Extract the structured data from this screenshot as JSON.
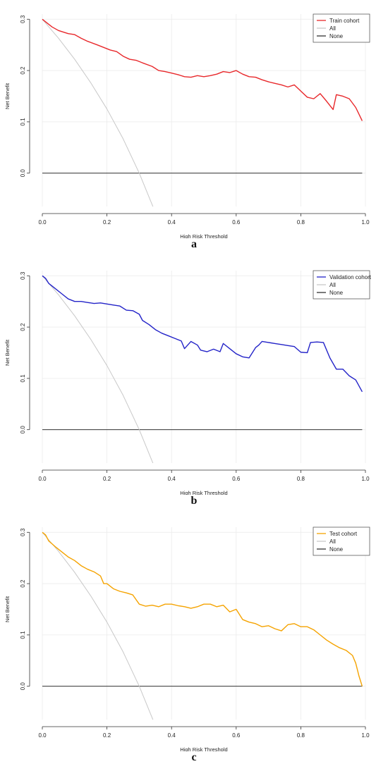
{
  "chart_data": [
    {
      "type": "line",
      "panel_label": "a",
      "xlabel": "High Risk Threshold",
      "ylabel": "Net Benefit",
      "xlim": [
        0,
        1
      ],
      "ylim": [
        -0.065,
        0.31
      ],
      "xticks": [
        "0.0",
        "0.2",
        "0.4",
        "0.6",
        "0.8",
        "1.0"
      ],
      "yticks": [
        "0.0",
        "0.1",
        "0.2",
        "0.3"
      ],
      "grid": true,
      "legend_position": "top-right",
      "series": [
        {
          "name": "Train cohort",
          "color": "#e8282b",
          "x": [
            0,
            0.01,
            0.03,
            0.05,
            0.08,
            0.1,
            0.12,
            0.14,
            0.17,
            0.19,
            0.21,
            0.23,
            0.25,
            0.27,
            0.29,
            0.31,
            0.34,
            0.36,
            0.38,
            0.4,
            0.42,
            0.44,
            0.46,
            0.48,
            0.5,
            0.52,
            0.54,
            0.56,
            0.58,
            0.6,
            0.62,
            0.64,
            0.66,
            0.68,
            0.7,
            0.72,
            0.74,
            0.76,
            0.78,
            0.8,
            0.82,
            0.84,
            0.86,
            0.88,
            0.9,
            0.91,
            0.93,
            0.95,
            0.97,
            0.99
          ],
          "y": [
            0.3,
            0.295,
            0.285,
            0.278,
            0.272,
            0.27,
            0.263,
            0.257,
            0.25,
            0.245,
            0.24,
            0.237,
            0.228,
            0.222,
            0.22,
            0.215,
            0.208,
            0.2,
            0.198,
            0.195,
            0.192,
            0.188,
            0.187,
            0.19,
            0.188,
            0.19,
            0.193,
            0.198,
            0.196,
            0.2,
            0.193,
            0.188,
            0.187,
            0.182,
            0.178,
            0.175,
            0.172,
            0.168,
            0.172,
            0.16,
            0.148,
            0.145,
            0.155,
            0.14,
            0.124,
            0.153,
            0.15,
            0.145,
            0.128,
            0.102
          ]
        },
        {
          "name": "All",
          "color": "#c8c8c8",
          "x": [
            0,
            0.05,
            0.1,
            0.15,
            0.2,
            0.25,
            0.3,
            0.35
          ],
          "y": [
            0.3,
            0.263,
            0.222,
            0.176,
            0.125,
            0.067,
            0.0,
            -0.077
          ]
        },
        {
          "name": "None",
          "color": "#333333",
          "x": [
            0,
            0.99
          ],
          "y": [
            0,
            0
          ]
        }
      ]
    },
    {
      "type": "line",
      "panel_label": "b",
      "xlabel": "High Risk Threshold",
      "ylabel": "Net Benefit",
      "xlim": [
        0,
        1
      ],
      "ylim": [
        -0.065,
        0.31
      ],
      "xticks": [
        "0.0",
        "0.2",
        "0.4",
        "0.6",
        "0.8",
        "1.0"
      ],
      "yticks": [
        "0.0",
        "0.1",
        "0.2",
        "0.3"
      ],
      "grid": true,
      "legend_position": "top-right",
      "series": [
        {
          "name": "Validation cohort",
          "color": "#2323c8",
          "x": [
            0,
            0.01,
            0.02,
            0.04,
            0.06,
            0.08,
            0.1,
            0.12,
            0.14,
            0.16,
            0.18,
            0.2,
            0.22,
            0.24,
            0.26,
            0.28,
            0.3,
            0.31,
            0.33,
            0.35,
            0.37,
            0.39,
            0.41,
            0.43,
            0.44,
            0.46,
            0.48,
            0.49,
            0.51,
            0.53,
            0.55,
            0.56,
            0.58,
            0.6,
            0.62,
            0.64,
            0.66,
            0.67,
            0.68,
            0.7,
            0.72,
            0.74,
            0.76,
            0.78,
            0.8,
            0.82,
            0.83,
            0.85,
            0.87,
            0.89,
            0.91,
            0.93,
            0.95,
            0.97,
            0.99
          ],
          "y": [
            0.3,
            0.295,
            0.285,
            0.275,
            0.265,
            0.255,
            0.25,
            0.25,
            0.248,
            0.246,
            0.247,
            0.245,
            0.243,
            0.241,
            0.233,
            0.232,
            0.225,
            0.213,
            0.205,
            0.195,
            0.188,
            0.183,
            0.178,
            0.173,
            0.158,
            0.172,
            0.165,
            0.155,
            0.152,
            0.157,
            0.152,
            0.168,
            0.158,
            0.148,
            0.142,
            0.14,
            0.16,
            0.165,
            0.172,
            0.17,
            0.168,
            0.166,
            0.164,
            0.162,
            0.151,
            0.15,
            0.17,
            0.171,
            0.17,
            0.14,
            0.118,
            0.118,
            0.105,
            0.097,
            0.074
          ]
        },
        {
          "name": "All",
          "color": "#c8c8c8",
          "x": [
            0,
            0.05,
            0.1,
            0.15,
            0.2,
            0.25,
            0.3,
            0.35
          ],
          "y": [
            0.3,
            0.263,
            0.222,
            0.176,
            0.125,
            0.067,
            0.0,
            -0.077
          ]
        },
        {
          "name": "None",
          "color": "#333333",
          "x": [
            0,
            0.99
          ],
          "y": [
            0,
            0
          ]
        }
      ]
    },
    {
      "type": "line",
      "panel_label": "c",
      "xlabel": "High Risk Threshold",
      "ylabel": "Net Benefit",
      "xlim": [
        0,
        1
      ],
      "ylim": [
        -0.065,
        0.31
      ],
      "xticks": [
        "0.0",
        "0.2",
        "0.4",
        "0.6",
        "0.8",
        "1.0"
      ],
      "yticks": [
        "0.0",
        "0.1",
        "0.2",
        "0.3"
      ],
      "grid": true,
      "legend_position": "top-right",
      "series": [
        {
          "name": "Test cohort",
          "color": "#f5a300",
          "x": [
            0,
            0.01,
            0.02,
            0.04,
            0.06,
            0.08,
            0.1,
            0.12,
            0.14,
            0.16,
            0.18,
            0.19,
            0.2,
            0.22,
            0.24,
            0.26,
            0.28,
            0.3,
            0.32,
            0.34,
            0.36,
            0.38,
            0.4,
            0.42,
            0.44,
            0.46,
            0.48,
            0.5,
            0.52,
            0.54,
            0.56,
            0.58,
            0.6,
            0.62,
            0.64,
            0.66,
            0.68,
            0.7,
            0.72,
            0.74,
            0.76,
            0.78,
            0.8,
            0.82,
            0.84,
            0.86,
            0.88,
            0.9,
            0.92,
            0.94,
            0.96,
            0.97,
            0.98,
            0.99
          ],
          "y": [
            0.3,
            0.295,
            0.283,
            0.272,
            0.262,
            0.252,
            0.245,
            0.235,
            0.228,
            0.223,
            0.215,
            0.2,
            0.2,
            0.19,
            0.185,
            0.182,
            0.178,
            0.16,
            0.156,
            0.158,
            0.155,
            0.16,
            0.16,
            0.157,
            0.155,
            0.152,
            0.155,
            0.16,
            0.16,
            0.155,
            0.158,
            0.145,
            0.15,
            0.13,
            0.125,
            0.122,
            0.116,
            0.118,
            0.112,
            0.108,
            0.12,
            0.122,
            0.116,
            0.116,
            0.11,
            0.1,
            0.09,
            0.082,
            0.075,
            0.07,
            0.06,
            0.045,
            0.02,
            0.0
          ]
        },
        {
          "name": "All",
          "color": "#c8c8c8",
          "x": [
            0,
            0.05,
            0.1,
            0.15,
            0.2,
            0.25,
            0.3,
            0.35
          ],
          "y": [
            0.3,
            0.263,
            0.222,
            0.176,
            0.125,
            0.067,
            0.0,
            -0.077
          ]
        },
        {
          "name": "None",
          "color": "#333333",
          "x": [
            0,
            0.99
          ],
          "y": [
            0,
            0
          ]
        }
      ]
    }
  ]
}
